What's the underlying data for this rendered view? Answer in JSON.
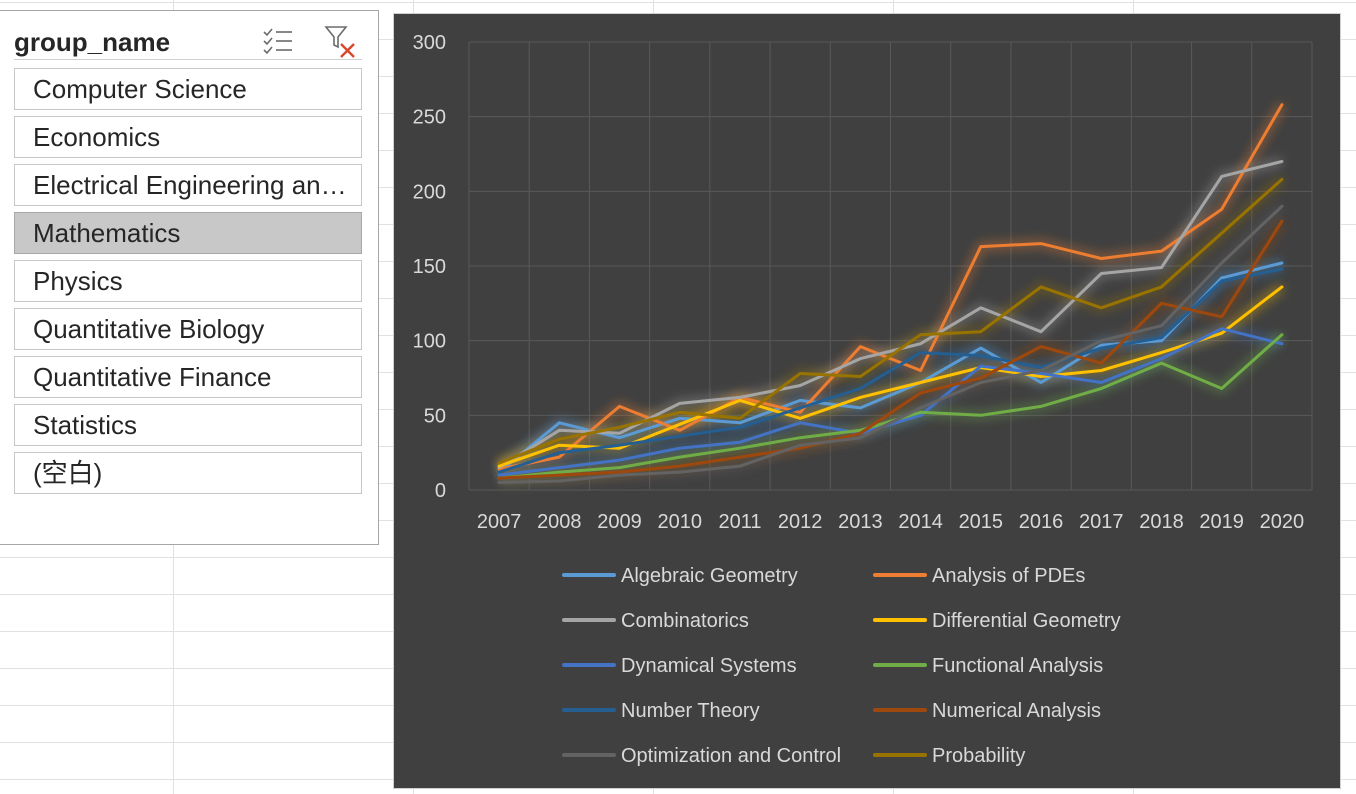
{
  "slicer": {
    "title": "group_name",
    "items": [
      {
        "label": "Computer Science",
        "selected": false
      },
      {
        "label": "Economics",
        "selected": false
      },
      {
        "label": "Electrical Engineering and Systems Science",
        "selected": false
      },
      {
        "label": "Mathematics",
        "selected": true
      },
      {
        "label": "Physics",
        "selected": false
      },
      {
        "label": "Quantitative Biology",
        "selected": false
      },
      {
        "label": "Quantitative Finance",
        "selected": false
      },
      {
        "label": "Statistics",
        "selected": false
      },
      {
        "label": "(空白)",
        "selected": false
      }
    ],
    "icons": {
      "multiselect": "multi-select-icon",
      "clear": "clear-filter-icon"
    }
  },
  "chart_data": {
    "type": "line",
    "title": "",
    "xlabel": "",
    "ylabel": "",
    "ylim": [
      0,
      300
    ],
    "yticks": [
      0,
      50,
      100,
      150,
      200,
      250,
      300
    ],
    "grid": true,
    "legend_position": "bottom",
    "x": [
      "2007",
      "2008",
      "2009",
      "2010",
      "2011",
      "2012",
      "2013",
      "2014",
      "2015",
      "2016",
      "2017",
      "2018",
      "2019",
      "2020"
    ],
    "series": [
      {
        "name": "Algebraic Geometry",
        "color": "#5b9bd5",
        "values": [
          12,
          45,
          35,
          48,
          45,
          60,
          55,
          72,
          95,
          72,
          97,
          100,
          142,
          152
        ]
      },
      {
        "name": "Analysis of PDEs",
        "color": "#ed7d31",
        "values": [
          14,
          22,
          56,
          40,
          62,
          52,
          96,
          80,
          163,
          165,
          155,
          160,
          188,
          258
        ]
      },
      {
        "name": "Combinatorics",
        "color": "#a5a5a5",
        "values": [
          15,
          40,
          38,
          58,
          62,
          70,
          88,
          98,
          122,
          106,
          145,
          149,
          210,
          220
        ]
      },
      {
        "name": "Differential Geometry",
        "color": "#ffc000",
        "values": [
          16,
          30,
          28,
          44,
          60,
          48,
          62,
          72,
          82,
          76,
          80,
          92,
          105,
          136
        ]
      },
      {
        "name": "Dynamical Systems",
        "color": "#4472c4",
        "values": [
          10,
          15,
          20,
          28,
          32,
          45,
          38,
          50,
          83,
          78,
          72,
          88,
          108,
          98
        ]
      },
      {
        "name": "Functional Analysis",
        "color": "#70ad47",
        "values": [
          8,
          12,
          15,
          22,
          28,
          35,
          40,
          52,
          50,
          56,
          68,
          85,
          68,
          104
        ]
      },
      {
        "name": "Number Theory",
        "color": "#255e91",
        "values": [
          12,
          25,
          30,
          36,
          42,
          55,
          68,
          92,
          90,
          82,
          95,
          102,
          140,
          148
        ]
      },
      {
        "name": "Numerical Analysis",
        "color": "#9e480e",
        "values": [
          8,
          10,
          12,
          16,
          22,
          28,
          38,
          65,
          75,
          96,
          85,
          125,
          116,
          180
        ]
      },
      {
        "name": "Optimization and Control",
        "color": "#636363",
        "values": [
          5,
          6,
          10,
          12,
          16,
          30,
          35,
          55,
          72,
          80,
          100,
          110,
          152,
          190
        ]
      },
      {
        "name": "Probability",
        "color": "#997300",
        "values": [
          18,
          34,
          42,
          52,
          48,
          78,
          76,
          104,
          106,
          136,
          122,
          136,
          172,
          208
        ]
      }
    ]
  }
}
